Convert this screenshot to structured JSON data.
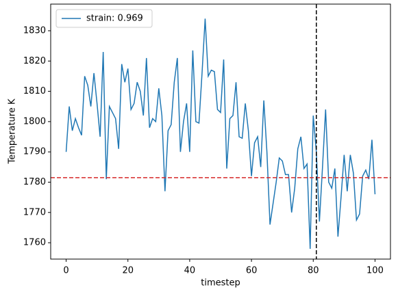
{
  "chart_data": {
    "type": "line",
    "xlabel": "timestep",
    "ylabel": "Temperature K",
    "x": [
      0,
      1,
      2,
      3,
      4,
      5,
      6,
      7,
      8,
      9,
      10,
      11,
      12,
      13,
      14,
      15,
      16,
      17,
      18,
      19,
      20,
      21,
      22,
      23,
      24,
      25,
      26,
      27,
      28,
      29,
      30,
      31,
      32,
      33,
      34,
      35,
      36,
      37,
      38,
      39,
      40,
      41,
      42,
      43,
      44,
      45,
      46,
      47,
      48,
      49,
      50,
      51,
      52,
      53,
      54,
      55,
      56,
      57,
      58,
      59,
      60,
      61,
      62,
      63,
      64,
      65,
      66,
      67,
      68,
      69,
      70,
      71,
      72,
      73,
      74,
      75,
      76,
      77,
      78,
      79,
      80,
      81,
      82,
      83,
      84,
      85,
      86,
      87,
      88,
      89,
      90,
      91,
      92,
      93,
      94,
      95,
      96,
      97,
      98,
      99,
      100
    ],
    "series": [
      {
        "name": "strain: 0.969",
        "color": "#1f77b4",
        "values": [
          1790,
          1805,
          1797,
          1801,
          1798,
          1795.5,
          1815,
          1812,
          1805,
          1816,
          1806,
          1795,
          1823,
          1781,
          1805,
          1803,
          1801,
          1791,
          1819,
          1813,
          1817.5,
          1804,
          1806,
          1813,
          1810,
          1802,
          1821,
          1798,
          1801,
          1800,
          1811,
          1802,
          1777,
          1797,
          1799,
          1813,
          1821,
          1790,
          1800,
          1806,
          1790,
          1823.5,
          1800,
          1799.5,
          1816,
          1834,
          1815,
          1817,
          1816.5,
          1804,
          1803,
          1820.5,
          1784.5,
          1801,
          1802,
          1813,
          1795,
          1794.5,
          1806,
          1797,
          1782,
          1793,
          1795,
          1785,
          1807,
          1790,
          1766,
          1773,
          1780,
          1788,
          1787,
          1782.5,
          1782.5,
          1770,
          1778,
          1791,
          1795,
          1784.5,
          1786,
          1758,
          1802,
          1790,
          1767,
          1785,
          1804,
          1780,
          1778,
          1784.5,
          1762,
          1775,
          1789,
          1777,
          1789,
          1783,
          1767.5,
          1769.5,
          1782,
          1784,
          1781,
          1794,
          1776
        ]
      }
    ],
    "reference_lines": [
      {
        "axis": "y",
        "value": 1781.5,
        "color": "#d62728"
      },
      {
        "axis": "x",
        "value": 81,
        "color": "#000000"
      }
    ],
    "xlim": [
      -5,
      105
    ],
    "xticks": [
      0,
      20,
      40,
      60,
      80,
      100
    ],
    "ylim": [
      1754.6,
      1838.8
    ],
    "yticks": [
      1760,
      1770,
      1780,
      1790,
      1800,
      1810,
      1820,
      1830
    ],
    "legend": "upper left"
  }
}
